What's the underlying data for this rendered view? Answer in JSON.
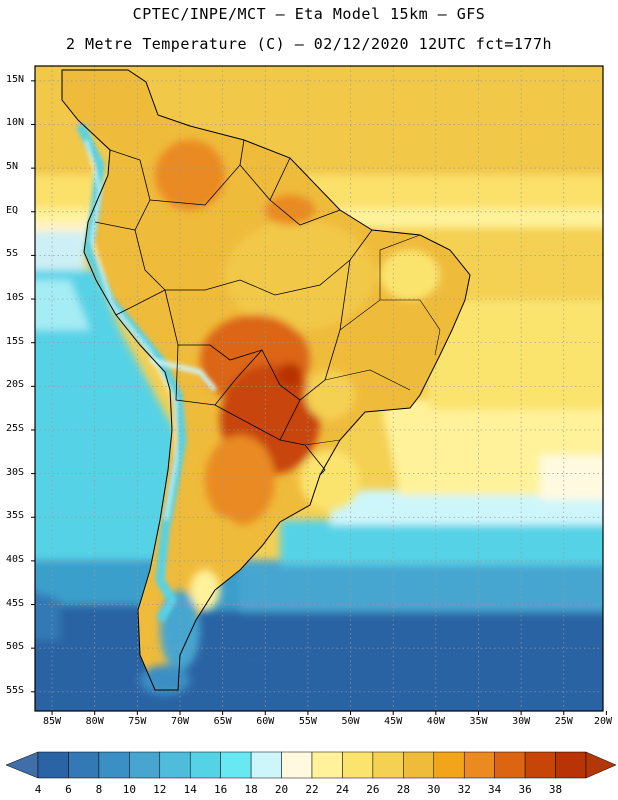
{
  "header": {
    "line1": "CPTEC/INPE/MCT –  Eta Model 15km – GFS",
    "line2": "2 Metre Temperature (C) – 02/12/2020 12UTC fct=177h"
  },
  "map": {
    "lat_labels": [
      "15N",
      "10N",
      "5N",
      "EQ",
      "5S",
      "10S",
      "15S",
      "20S",
      "25S",
      "30S",
      "35S",
      "40S",
      "45S",
      "50S",
      "55S"
    ],
    "lon_labels": [
      "85W",
      "80W",
      "75W",
      "70W",
      "65W",
      "60W",
      "55W",
      "50W",
      "45W",
      "40W",
      "35W",
      "30W",
      "25W",
      "20W"
    ],
    "lat_range": [
      15,
      -57
    ],
    "lon_range": [
      -85,
      -20
    ]
  },
  "legend": {
    "values": [
      "4",
      "6",
      "8",
      "10",
      "12",
      "14",
      "16",
      "18",
      "20",
      "22",
      "24",
      "26",
      "28",
      "30",
      "32",
      "34",
      "36",
      "38"
    ],
    "colors": [
      "#2a64a4",
      "#3279b6",
      "#3a8fc4",
      "#47a6d0",
      "#4fbcdc",
      "#56d2e6",
      "#68e8f2",
      "#cdf6fb",
      "#fff9e0",
      "#fff29a",
      "#fbe46e",
      "#f4d053",
      "#efbb3b",
      "#f2a51a",
      "#ea8a20",
      "#dc6512",
      "#c84508",
      "#b83305"
    ],
    "under_color": "#3f6ea8",
    "over_color": "#b2380a"
  }
}
